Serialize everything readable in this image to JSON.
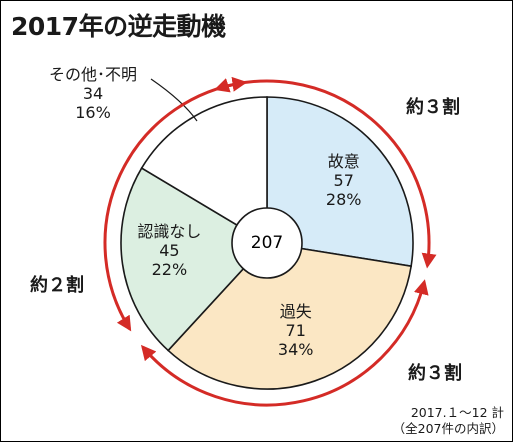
{
  "title": "2017年の逆走動機",
  "chart_data": {
    "type": "pie",
    "total_label": "207",
    "slices": [
      {
        "name": "故意",
        "count": "57",
        "percent": "28%",
        "value": 57,
        "color": "#d6ebf8"
      },
      {
        "name": "過失",
        "count": "71",
        "percent": "34%",
        "value": 71,
        "color": "#fbe7c4"
      },
      {
        "name": "認識なし",
        "count": "45",
        "percent": "22%",
        "value": 45,
        "color": "#dcefe1"
      },
      {
        "name": "その他･不明",
        "count": "34",
        "percent": "16%",
        "value": 34,
        "color": "#ffffff"
      }
    ],
    "annotations": [
      {
        "label": "約３割",
        "color": "#d42b26"
      },
      {
        "label": "約３割",
        "color": "#d42b26"
      },
      {
        "label": "約２割",
        "color": "#d42b26"
      }
    ]
  },
  "footnote": {
    "line1": "2017.１〜12 計",
    "line2": "（全207件の内訳）"
  }
}
